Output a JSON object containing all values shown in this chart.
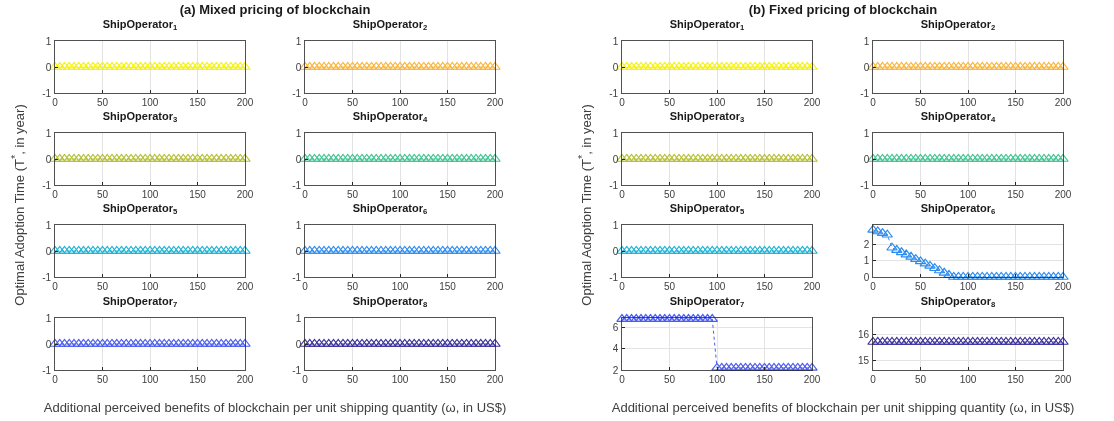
{
  "chart_data": [
    {
      "type": "line",
      "title": "ShipOperator$_{1}$",
      "annotations": [
        "(a) Mixed pricing of blockchain"
      ],
      "ylabel": "Optimal Adoption Time (T$^{*}$, in year)",
      "xlabel": "Additional perceived benefits of blockchain per unit shipping quantity (ω, in US$)",
      "color": "#f5f10f",
      "x": [
        0,
        5,
        10,
        15,
        20,
        25,
        30,
        35,
        40,
        45,
        50,
        55,
        60,
        65,
        70,
        75,
        80,
        85,
        90,
        95,
        100,
        105,
        110,
        115,
        120,
        125,
        130,
        135,
        140,
        145,
        150,
        155,
        160,
        165,
        170,
        175,
        180,
        185,
        190,
        195,
        200
      ],
      "values": [
        0,
        0,
        0,
        0,
        0,
        0,
        0,
        0,
        0,
        0,
        0,
        0,
        0,
        0,
        0,
        0,
        0,
        0,
        0,
        0,
        0,
        0,
        0,
        0,
        0,
        0,
        0,
        0,
        0,
        0,
        0,
        0,
        0,
        0,
        0,
        0,
        0,
        0,
        0,
        0,
        0
      ],
      "xlim": [
        0,
        200
      ],
      "xticks": [
        0,
        50,
        100,
        150,
        200
      ],
      "ylim": [
        -1,
        1
      ],
      "yticks": [
        -1,
        0,
        1
      ],
      "grid": true,
      "marker": "triangle",
      "line_style": "dotted"
    },
    {
      "type": "line",
      "title": "ShipOperator$_{2}$",
      "color": "#f9b43c",
      "x": [
        0,
        5,
        10,
        15,
        20,
        25,
        30,
        35,
        40,
        45,
        50,
        55,
        60,
        65,
        70,
        75,
        80,
        85,
        90,
        95,
        100,
        105,
        110,
        115,
        120,
        125,
        130,
        135,
        140,
        145,
        150,
        155,
        160,
        165,
        170,
        175,
        180,
        185,
        190,
        195,
        200
      ],
      "values": [
        0,
        0,
        0,
        0,
        0,
        0,
        0,
        0,
        0,
        0,
        0,
        0,
        0,
        0,
        0,
        0,
        0,
        0,
        0,
        0,
        0,
        0,
        0,
        0,
        0,
        0,
        0,
        0,
        0,
        0,
        0,
        0,
        0,
        0,
        0,
        0,
        0,
        0,
        0,
        0,
        0
      ],
      "xlim": [
        0,
        200
      ],
      "xticks": [
        0,
        50,
        100,
        150,
        200
      ],
      "ylim": [
        -1,
        1
      ],
      "yticks": [
        -1,
        0,
        1
      ],
      "grid": true,
      "marker": "triangle",
      "line_style": "dotted"
    },
    {
      "type": "line",
      "title": "ShipOperator$_{3}$",
      "color": "#b3c034",
      "x": [
        0,
        5,
        10,
        15,
        20,
        25,
        30,
        35,
        40,
        45,
        50,
        55,
        60,
        65,
        70,
        75,
        80,
        85,
        90,
        95,
        100,
        105,
        110,
        115,
        120,
        125,
        130,
        135,
        140,
        145,
        150,
        155,
        160,
        165,
        170,
        175,
        180,
        185,
        190,
        195,
        200
      ],
      "values": [
        0,
        0,
        0,
        0,
        0,
        0,
        0,
        0,
        0,
        0,
        0,
        0,
        0,
        0,
        0,
        0,
        0,
        0,
        0,
        0,
        0,
        0,
        0,
        0,
        0,
        0,
        0,
        0,
        0,
        0,
        0,
        0,
        0,
        0,
        0,
        0,
        0,
        0,
        0,
        0,
        0
      ],
      "xlim": [
        0,
        200
      ],
      "xticks": [
        0,
        50,
        100,
        150,
        200
      ],
      "ylim": [
        -1,
        1
      ],
      "yticks": [
        -1,
        0,
        1
      ],
      "grid": true,
      "marker": "triangle",
      "line_style": "dotted"
    },
    {
      "type": "line",
      "title": "ShipOperator$_{4}$",
      "color": "#3fc38f",
      "x": [
        0,
        5,
        10,
        15,
        20,
        25,
        30,
        35,
        40,
        45,
        50,
        55,
        60,
        65,
        70,
        75,
        80,
        85,
        90,
        95,
        100,
        105,
        110,
        115,
        120,
        125,
        130,
        135,
        140,
        145,
        150,
        155,
        160,
        165,
        170,
        175,
        180,
        185,
        190,
        195,
        200
      ],
      "values": [
        0,
        0,
        0,
        0,
        0,
        0,
        0,
        0,
        0,
        0,
        0,
        0,
        0,
        0,
        0,
        0,
        0,
        0,
        0,
        0,
        0,
        0,
        0,
        0,
        0,
        0,
        0,
        0,
        0,
        0,
        0,
        0,
        0,
        0,
        0,
        0,
        0,
        0,
        0,
        0,
        0
      ],
      "xlim": [
        0,
        200
      ],
      "xticks": [
        0,
        50,
        100,
        150,
        200
      ],
      "ylim": [
        -1,
        1
      ],
      "yticks": [
        -1,
        0,
        1
      ],
      "grid": true,
      "marker": "triangle",
      "line_style": "dotted"
    },
    {
      "type": "line",
      "title": "ShipOperator$_{5}$",
      "color": "#1cb3d3",
      "x": [
        0,
        5,
        10,
        15,
        20,
        25,
        30,
        35,
        40,
        45,
        50,
        55,
        60,
        65,
        70,
        75,
        80,
        85,
        90,
        95,
        100,
        105,
        110,
        115,
        120,
        125,
        130,
        135,
        140,
        145,
        150,
        155,
        160,
        165,
        170,
        175,
        180,
        185,
        190,
        195,
        200
      ],
      "values": [
        0,
        0,
        0,
        0,
        0,
        0,
        0,
        0,
        0,
        0,
        0,
        0,
        0,
        0,
        0,
        0,
        0,
        0,
        0,
        0,
        0,
        0,
        0,
        0,
        0,
        0,
        0,
        0,
        0,
        0,
        0,
        0,
        0,
        0,
        0,
        0,
        0,
        0,
        0,
        0,
        0
      ],
      "xlim": [
        0,
        200
      ],
      "xticks": [
        0,
        50,
        100,
        150,
        200
      ],
      "ylim": [
        -1,
        1
      ],
      "yticks": [
        -1,
        0,
        1
      ],
      "grid": true,
      "marker": "triangle",
      "line_style": "dotted"
    },
    {
      "type": "line",
      "title": "ShipOperator$_{6}$",
      "color": "#2c8cf0",
      "x": [
        0,
        5,
        10,
        15,
        20,
        25,
        30,
        35,
        40,
        45,
        50,
        55,
        60,
        65,
        70,
        75,
        80,
        85,
        90,
        95,
        100,
        105,
        110,
        115,
        120,
        125,
        130,
        135,
        140,
        145,
        150,
        155,
        160,
        165,
        170,
        175,
        180,
        185,
        190,
        195,
        200
      ],
      "values": [
        0,
        0,
        0,
        0,
        0,
        0,
        0,
        0,
        0,
        0,
        0,
        0,
        0,
        0,
        0,
        0,
        0,
        0,
        0,
        0,
        0,
        0,
        0,
        0,
        0,
        0,
        0,
        0,
        0,
        0,
        0,
        0,
        0,
        0,
        0,
        0,
        0,
        0,
        0,
        0,
        0
      ],
      "xlim": [
        0,
        200
      ],
      "xticks": [
        0,
        50,
        100,
        150,
        200
      ],
      "ylim": [
        -1,
        1
      ],
      "yticks": [
        -1,
        0,
        1
      ],
      "grid": true,
      "marker": "triangle",
      "line_style": "dotted"
    },
    {
      "type": "line",
      "title": "ShipOperator$_{7}$",
      "color": "#4a5cf2",
      "x": [
        0,
        5,
        10,
        15,
        20,
        25,
        30,
        35,
        40,
        45,
        50,
        55,
        60,
        65,
        70,
        75,
        80,
        85,
        90,
        95,
        100,
        105,
        110,
        115,
        120,
        125,
        130,
        135,
        140,
        145,
        150,
        155,
        160,
        165,
        170,
        175,
        180,
        185,
        190,
        195,
        200
      ],
      "values": [
        0,
        0,
        0,
        0,
        0,
        0,
        0,
        0,
        0,
        0,
        0,
        0,
        0,
        0,
        0,
        0,
        0,
        0,
        0,
        0,
        0,
        0,
        0,
        0,
        0,
        0,
        0,
        0,
        0,
        0,
        0,
        0,
        0,
        0,
        0,
        0,
        0,
        0,
        0,
        0,
        0
      ],
      "xlim": [
        0,
        200
      ],
      "xticks": [
        0,
        50,
        100,
        150,
        200
      ],
      "ylim": [
        -1,
        1
      ],
      "yticks": [
        -1,
        0,
        1
      ],
      "grid": true,
      "marker": "triangle",
      "line_style": "dotted"
    },
    {
      "type": "line",
      "title": "ShipOperator$_{8}$",
      "color": "#3b2f9e",
      "x": [
        0,
        5,
        10,
        15,
        20,
        25,
        30,
        35,
        40,
        45,
        50,
        55,
        60,
        65,
        70,
        75,
        80,
        85,
        90,
        95,
        100,
        105,
        110,
        115,
        120,
        125,
        130,
        135,
        140,
        145,
        150,
        155,
        160,
        165,
        170,
        175,
        180,
        185,
        190,
        195,
        200
      ],
      "values": [
        0,
        0,
        0,
        0,
        0,
        0,
        0,
        0,
        0,
        0,
        0,
        0,
        0,
        0,
        0,
        0,
        0,
        0,
        0,
        0,
        0,
        0,
        0,
        0,
        0,
        0,
        0,
        0,
        0,
        0,
        0,
        0,
        0,
        0,
        0,
        0,
        0,
        0,
        0,
        0,
        0
      ],
      "xlim": [
        0,
        200
      ],
      "xticks": [
        0,
        50,
        100,
        150,
        200
      ],
      "ylim": [
        -1,
        1
      ],
      "yticks": [
        -1,
        0,
        1
      ],
      "grid": true,
      "marker": "triangle",
      "line_style": "dotted"
    },
    {
      "type": "line",
      "title": "ShipOperator$_{1}$",
      "annotations": [
        "(b) Fixed pricing of blockchain"
      ],
      "ylabel": "Optimal Adoption Time (T$^{*}$, in year)",
      "xlabel": "Additional perceived benefits of blockchain per unit shipping quantity (ω, in US$)",
      "color": "#f5f10f",
      "x": [
        0,
        5,
        10,
        15,
        20,
        25,
        30,
        35,
        40,
        45,
        50,
        55,
        60,
        65,
        70,
        75,
        80,
        85,
        90,
        95,
        100,
        105,
        110,
        115,
        120,
        125,
        130,
        135,
        140,
        145,
        150,
        155,
        160,
        165,
        170,
        175,
        180,
        185,
        190,
        195,
        200
      ],
      "values": [
        0,
        0,
        0,
        0,
        0,
        0,
        0,
        0,
        0,
        0,
        0,
        0,
        0,
        0,
        0,
        0,
        0,
        0,
        0,
        0,
        0,
        0,
        0,
        0,
        0,
        0,
        0,
        0,
        0,
        0,
        0,
        0,
        0,
        0,
        0,
        0,
        0,
        0,
        0,
        0,
        0
      ],
      "xlim": [
        0,
        200
      ],
      "xticks": [
        0,
        50,
        100,
        150,
        200
      ],
      "ylim": [
        -1,
        1
      ],
      "yticks": [
        -1,
        0,
        1
      ],
      "grid": true,
      "marker": "triangle",
      "line_style": "dotted"
    },
    {
      "type": "line",
      "title": "ShipOperator$_{2}$",
      "color": "#f9b43c",
      "x": [
        0,
        5,
        10,
        15,
        20,
        25,
        30,
        35,
        40,
        45,
        50,
        55,
        60,
        65,
        70,
        75,
        80,
        85,
        90,
        95,
        100,
        105,
        110,
        115,
        120,
        125,
        130,
        135,
        140,
        145,
        150,
        155,
        160,
        165,
        170,
        175,
        180,
        185,
        190,
        195,
        200
      ],
      "values": [
        0,
        0,
        0,
        0,
        0,
        0,
        0,
        0,
        0,
        0,
        0,
        0,
        0,
        0,
        0,
        0,
        0,
        0,
        0,
        0,
        0,
        0,
        0,
        0,
        0,
        0,
        0,
        0,
        0,
        0,
        0,
        0,
        0,
        0,
        0,
        0,
        0,
        0,
        0,
        0,
        0
      ],
      "xlim": [
        0,
        200
      ],
      "xticks": [
        0,
        50,
        100,
        150,
        200
      ],
      "ylim": [
        -1,
        1
      ],
      "yticks": [
        -1,
        0,
        1
      ],
      "grid": true,
      "marker": "triangle",
      "line_style": "dotted"
    },
    {
      "type": "line",
      "title": "ShipOperator$_{3}$",
      "color": "#b3c034",
      "x": [
        0,
        5,
        10,
        15,
        20,
        25,
        30,
        35,
        40,
        45,
        50,
        55,
        60,
        65,
        70,
        75,
        80,
        85,
        90,
        95,
        100,
        105,
        110,
        115,
        120,
        125,
        130,
        135,
        140,
        145,
        150,
        155,
        160,
        165,
        170,
        175,
        180,
        185,
        190,
        195,
        200
      ],
      "values": [
        0,
        0,
        0,
        0,
        0,
        0,
        0,
        0,
        0,
        0,
        0,
        0,
        0,
        0,
        0,
        0,
        0,
        0,
        0,
        0,
        0,
        0,
        0,
        0,
        0,
        0,
        0,
        0,
        0,
        0,
        0,
        0,
        0,
        0,
        0,
        0,
        0,
        0,
        0,
        0,
        0
      ],
      "xlim": [
        0,
        200
      ],
      "xticks": [
        0,
        50,
        100,
        150,
        200
      ],
      "ylim": [
        -1,
        1
      ],
      "yticks": [
        -1,
        0,
        1
      ],
      "grid": true,
      "marker": "triangle",
      "line_style": "dotted"
    },
    {
      "type": "line",
      "title": "ShipOperator$_{4}$",
      "color": "#3fc38f",
      "x": [
        0,
        5,
        10,
        15,
        20,
        25,
        30,
        35,
        40,
        45,
        50,
        55,
        60,
        65,
        70,
        75,
        80,
        85,
        90,
        95,
        100,
        105,
        110,
        115,
        120,
        125,
        130,
        135,
        140,
        145,
        150,
        155,
        160,
        165,
        170,
        175,
        180,
        185,
        190,
        195,
        200
      ],
      "values": [
        0,
        0,
        0,
        0,
        0,
        0,
        0,
        0,
        0,
        0,
        0,
        0,
        0,
        0,
        0,
        0,
        0,
        0,
        0,
        0,
        0,
        0,
        0,
        0,
        0,
        0,
        0,
        0,
        0,
        0,
        0,
        0,
        0,
        0,
        0,
        0,
        0,
        0,
        0,
        0,
        0
      ],
      "xlim": [
        0,
        200
      ],
      "xticks": [
        0,
        50,
        100,
        150,
        200
      ],
      "ylim": [
        -1,
        1
      ],
      "yticks": [
        -1,
        0,
        1
      ],
      "grid": true,
      "marker": "triangle",
      "line_style": "dotted"
    },
    {
      "type": "line",
      "title": "ShipOperator$_{5}$",
      "color": "#1cb3d3",
      "x": [
        0,
        5,
        10,
        15,
        20,
        25,
        30,
        35,
        40,
        45,
        50,
        55,
        60,
        65,
        70,
        75,
        80,
        85,
        90,
        95,
        100,
        105,
        110,
        115,
        120,
        125,
        130,
        135,
        140,
        145,
        150,
        155,
        160,
        165,
        170,
        175,
        180,
        185,
        190,
        195,
        200
      ],
      "values": [
        0,
        0,
        0,
        0,
        0,
        0,
        0,
        0,
        0,
        0,
        0,
        0,
        0,
        0,
        0,
        0,
        0,
        0,
        0,
        0,
        0,
        0,
        0,
        0,
        0,
        0,
        0,
        0,
        0,
        0,
        0,
        0,
        0,
        0,
        0,
        0,
        0,
        0,
        0,
        0,
        0
      ],
      "xlim": [
        0,
        200
      ],
      "xticks": [
        0,
        50,
        100,
        150,
        200
      ],
      "ylim": [
        -1,
        1
      ],
      "yticks": [
        -1,
        0,
        1
      ],
      "grid": true,
      "marker": "triangle",
      "line_style": "dotted"
    },
    {
      "type": "line",
      "title": "ShipOperator$_{6}$",
      "color": "#2c8cf0",
      "x": [
        0,
        5,
        10,
        15,
        20,
        25,
        30,
        35,
        40,
        45,
        50,
        55,
        60,
        65,
        70,
        75,
        80,
        85,
        90,
        95,
        100,
        105,
        110,
        115,
        120,
        125,
        130,
        135,
        140,
        145,
        150,
        155,
        160,
        165,
        170,
        175,
        180,
        185,
        190,
        195,
        200
      ],
      "values": [
        2.9,
        2.8,
        2.7,
        2.6,
        1.8,
        1.66,
        1.52,
        1.38,
        1.24,
        1.1,
        0.96,
        0.82,
        0.68,
        0.54,
        0.4,
        0.26,
        0.12,
        0,
        0,
        0,
        0,
        0,
        0,
        0,
        0,
        0,
        0,
        0,
        0,
        0,
        0,
        0,
        0,
        0,
        0,
        0,
        0,
        0,
        0,
        0,
        0
      ],
      "xlim": [
        0,
        200
      ],
      "xticks": [
        0,
        50,
        100,
        150,
        200
      ],
      "ylim": [
        0,
        3.2
      ],
      "yticks": [
        0,
        1,
        2
      ],
      "grid": true,
      "marker": "triangle",
      "line_style": "dotted"
    },
    {
      "type": "line",
      "title": "ShipOperator$_{7}$",
      "color": "#4a5cf2",
      "x": [
        0,
        5,
        10,
        15,
        20,
        25,
        30,
        35,
        40,
        45,
        50,
        55,
        60,
        65,
        70,
        75,
        80,
        85,
        90,
        95,
        100,
        105,
        110,
        115,
        120,
        125,
        130,
        135,
        140,
        145,
        150,
        155,
        160,
        165,
        170,
        175,
        180,
        185,
        190,
        195,
        200
      ],
      "values": [
        6.8,
        6.8,
        6.8,
        6.8,
        6.8,
        6.8,
        6.8,
        6.8,
        6.8,
        6.8,
        6.8,
        6.8,
        6.8,
        6.8,
        6.8,
        6.8,
        6.8,
        6.8,
        6.8,
        6.8,
        2.2,
        2.2,
        2.2,
        2.2,
        2.2,
        2.2,
        2.2,
        2.2,
        2.2,
        2.2,
        2.2,
        2.2,
        2.2,
        2.2,
        2.2,
        2.2,
        2.2,
        2.2,
        2.2,
        2.2,
        2.2
      ],
      "xlim": [
        0,
        200
      ],
      "xticks": [
        0,
        50,
        100,
        150,
        200
      ],
      "ylim": [
        2,
        6.9
      ],
      "yticks": [
        2,
        4,
        6
      ],
      "grid": true,
      "marker": "triangle",
      "line_style": "dotted"
    },
    {
      "type": "line",
      "title": "ShipOperator$_{8}$",
      "color": "#3b2f9e",
      "x": [
        0,
        5,
        10,
        15,
        20,
        25,
        30,
        35,
        40,
        45,
        50,
        55,
        60,
        65,
        70,
        75,
        80,
        85,
        90,
        95,
        100,
        105,
        110,
        115,
        120,
        125,
        130,
        135,
        140,
        145,
        150,
        155,
        160,
        165,
        170,
        175,
        180,
        185,
        190,
        195,
        200
      ],
      "values": [
        15.7,
        15.7,
        15.7,
        15.7,
        15.7,
        15.7,
        15.7,
        15.7,
        15.7,
        15.7,
        15.7,
        15.7,
        15.7,
        15.7,
        15.7,
        15.7,
        15.7,
        15.7,
        15.7,
        15.7,
        15.7,
        15.7,
        15.7,
        15.7,
        15.7,
        15.7,
        15.7,
        15.7,
        15.7,
        15.7,
        15.7,
        15.7,
        15.7,
        15.7,
        15.7,
        15.7,
        15.7,
        15.7,
        15.7,
        15.7,
        15.7
      ],
      "xlim": [
        0,
        200
      ],
      "xticks": [
        0,
        50,
        100,
        150,
        200
      ],
      "ylim": [
        14.65,
        16.6
      ],
      "yticks": [
        15,
        16
      ],
      "grid": true,
      "marker": "triangle",
      "line_style": "dotted"
    }
  ]
}
